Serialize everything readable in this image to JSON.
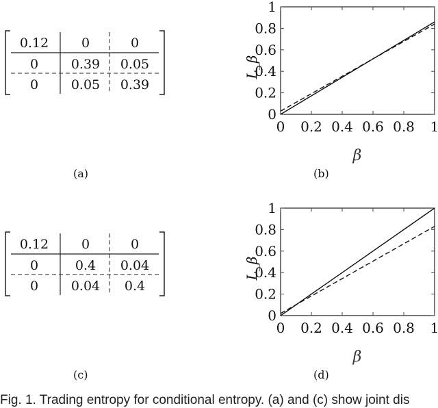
{
  "matrices": [
    {
      "label": "(a)",
      "rows": [
        [
          "0.12",
          "0",
          "0"
        ],
        [
          "0",
          "0.39",
          "0.05"
        ],
        [
          "0",
          "0.05",
          "0.39"
        ]
      ]
    },
    {
      "label": "(c)",
      "rows": [
        [
          "0.12",
          "0",
          "0"
        ],
        [
          "0",
          "0.4",
          "0.04"
        ],
        [
          "0",
          "0.04",
          "0.4"
        ]
      ]
    }
  ],
  "chart_data": [
    {
      "type": "line",
      "label": "(b)",
      "xlabel": "β",
      "ylabel": "L_β",
      "xlim": [
        0,
        1
      ],
      "ylim": [
        0,
        1
      ],
      "xticks": [
        "0",
        "0.2",
        "0.4",
        "0.6",
        "0.8",
        "1"
      ],
      "yticks": [
        "0",
        "0.2",
        "0.4",
        "0.6",
        "0.8",
        "1"
      ],
      "series": [
        {
          "style": "solid",
          "x": [
            0,
            1
          ],
          "y": [
            0,
            0.86
          ]
        },
        {
          "style": "dashed",
          "x": [
            0,
            1
          ],
          "y": [
            0.03,
            0.84
          ]
        }
      ]
    },
    {
      "type": "line",
      "label": "(d)",
      "xlabel": "β",
      "ylabel": "L_β",
      "xlim": [
        0,
        1
      ],
      "ylim": [
        0,
        1
      ],
      "xticks": [
        "0",
        "0.2",
        "0.4",
        "0.6",
        "0.8",
        "1"
      ],
      "yticks": [
        "0",
        "0.2",
        "0.4",
        "0.6",
        "0.8",
        "1"
      ],
      "series": [
        {
          "style": "solid",
          "x": [
            0,
            1
          ],
          "y": [
            0,
            1.0
          ]
        },
        {
          "style": "dashed",
          "x": [
            0,
            1
          ],
          "y": [
            0.02,
            0.83
          ]
        }
      ]
    }
  ],
  "caption": "Fig. 1. Trading entropy for conditional entropy. (a) and (c) show joint dis"
}
